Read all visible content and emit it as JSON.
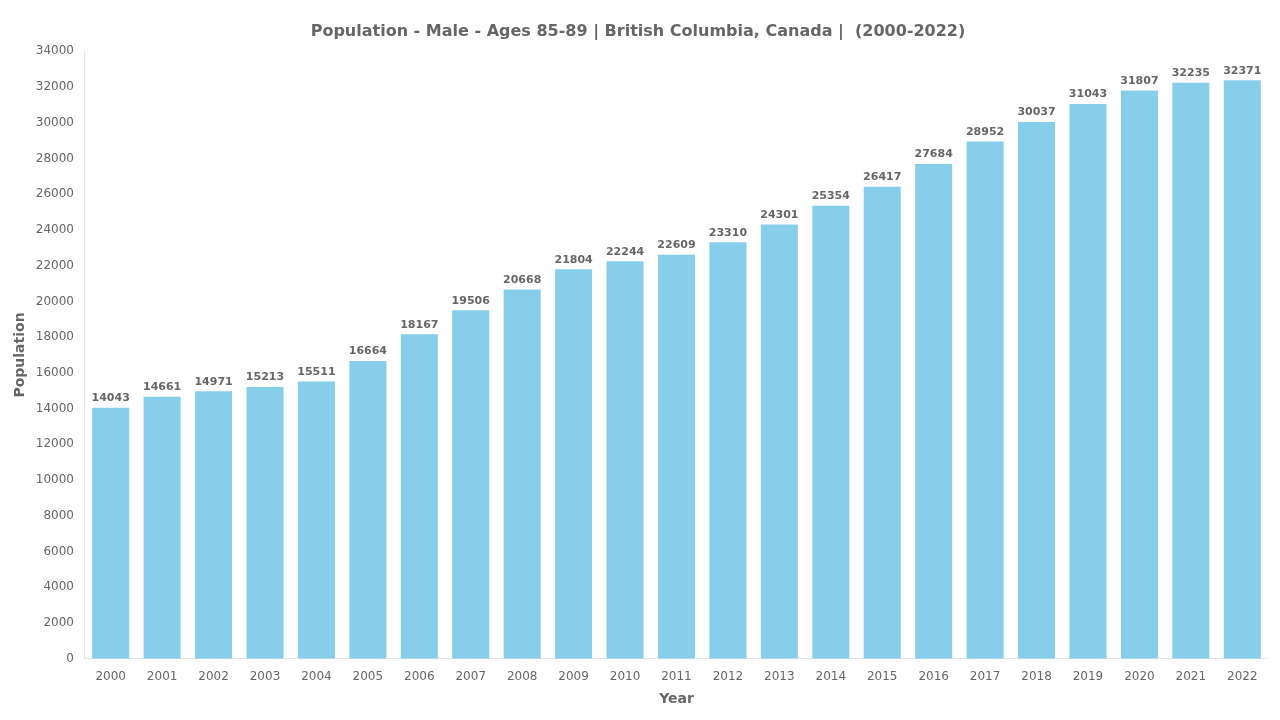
{
  "chart_data": {
    "type": "bar",
    "title": "Population - Male - Ages 85-89 | British Columbia, Canada |  (2000-2022)",
    "x_label": "Year",
    "y_label": "Population",
    "categories": [
      "2000",
      "2001",
      "2002",
      "2003",
      "2004",
      "2005",
      "2006",
      "2007",
      "2008",
      "2009",
      "2010",
      "2011",
      "2012",
      "2013",
      "2014",
      "2015",
      "2016",
      "2017",
      "2018",
      "2019",
      "2020",
      "2021",
      "2022"
    ],
    "values": [
      14043,
      14661,
      14971,
      15213,
      15511,
      16664,
      18167,
      19506,
      20668,
      21804,
      22244,
      22609,
      23310,
      24301,
      25354,
      26417,
      27684,
      28952,
      30037,
      31043,
      31807,
      32235,
      32371
    ],
    "color": "#87ceeb",
    "ylim": [
      0,
      34000
    ],
    "yticks": [
      0,
      2000,
      4000,
      6000,
      8000,
      10000,
      12000,
      14000,
      16000,
      18000,
      20000,
      22000,
      24000,
      26000,
      28000,
      30000,
      32000,
      34000
    ],
    "grid": false,
    "data_labels": true
  }
}
